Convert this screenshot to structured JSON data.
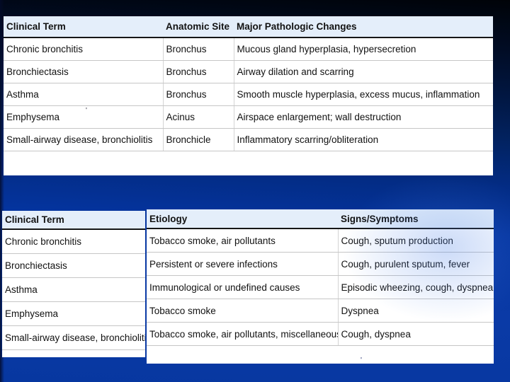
{
  "slide": {
    "background_top_color": "#000308",
    "background_bottom_color": "#0a3aa6",
    "header_row_color": "#e4eefa",
    "table_background_color": "#ffffff"
  },
  "table1": {
    "columns": [
      "Clinical Term",
      "Anatomic Site",
      "Major Pathologic Changes"
    ],
    "rows": [
      [
        "Chronic bronchitis",
        "Bronchus",
        "Mucous gland hyperplasia, hypersecretion"
      ],
      [
        "Bronchiectasis",
        "Bronchus",
        "Airway dilation and scarring"
      ],
      [
        "Asthma",
        "Bronchus",
        "Smooth muscle hyperplasia, excess mucus, inflammation"
      ],
      [
        "Emphysema",
        "Acinus",
        "Airspace enlargement; wall destruction"
      ],
      [
        "Small-airway disease, bronchiolitis",
        "Bronchicle",
        "Inflammatory scarring/obliteration"
      ]
    ]
  },
  "table2": {
    "columns": [
      "Clinical Term",
      "Etiology",
      "Signs/Symptoms"
    ],
    "rows": [
      [
        "Chronic bronchitis",
        "Tobacco smoke, air pollutants",
        "Cough, sputum production"
      ],
      [
        "Bronchiectasis",
        "Persistent or severe infections",
        "Cough, purulent sputum, fever"
      ],
      [
        "Asthma",
        "Immunological or undefined causes",
        "Episodic wheezing, cough, dyspnea"
      ],
      [
        "Emphysema",
        "Tobacco smoke",
        "Dyspnea"
      ],
      [
        "Small-airway disease, bronchiolitis",
        "Tobacco smoke, air pollutants, miscellaneous",
        "Cough, dyspnea"
      ]
    ]
  },
  "artifacts": {
    "mark1": "'",
    "mark2": "'"
  }
}
